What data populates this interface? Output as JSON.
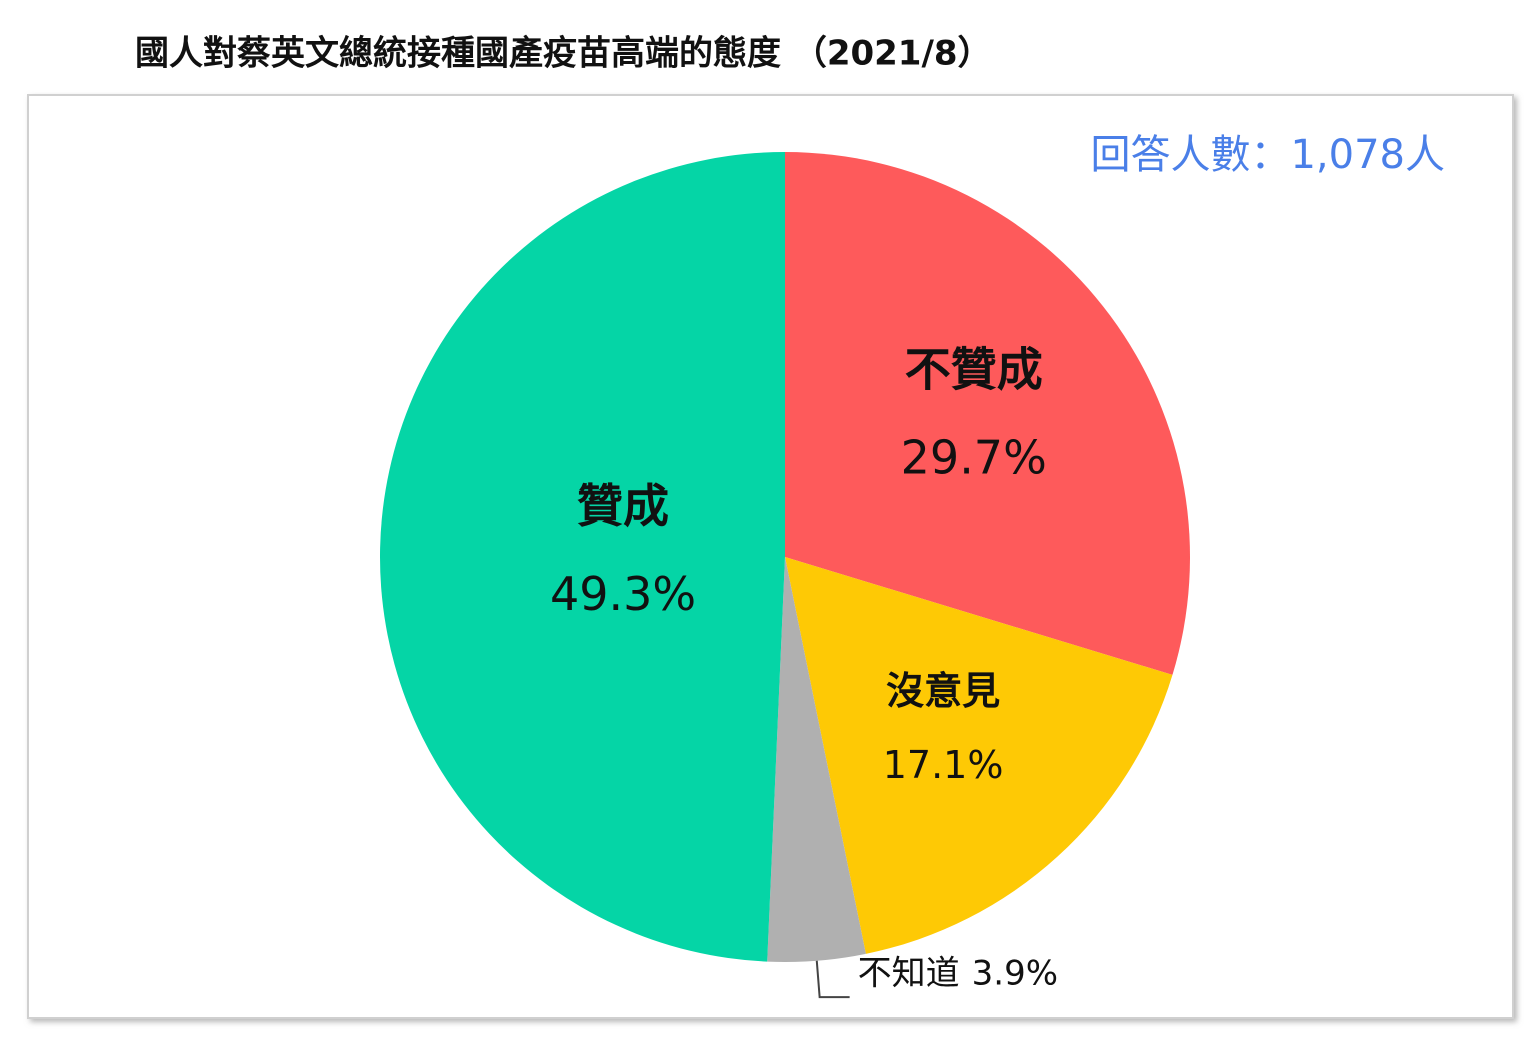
{
  "chart_data": {
    "type": "pie",
    "title": "國人對蔡英文總統接種國產疫苗高端的態度 （2021/8）",
    "annotation": "回答人數：1,078人",
    "categories": [
      "不贊成",
      "沒意見",
      "不知道",
      "贊成"
    ],
    "values": [
      29.7,
      17.1,
      3.9,
      49.3
    ],
    "value_labels": [
      "29.7%",
      "17.1%",
      "3.9%",
      "49.3%"
    ],
    "colors": [
      "#fe5a5b",
      "#fec905",
      "#b0b0b0",
      "#05d5a6"
    ]
  }
}
